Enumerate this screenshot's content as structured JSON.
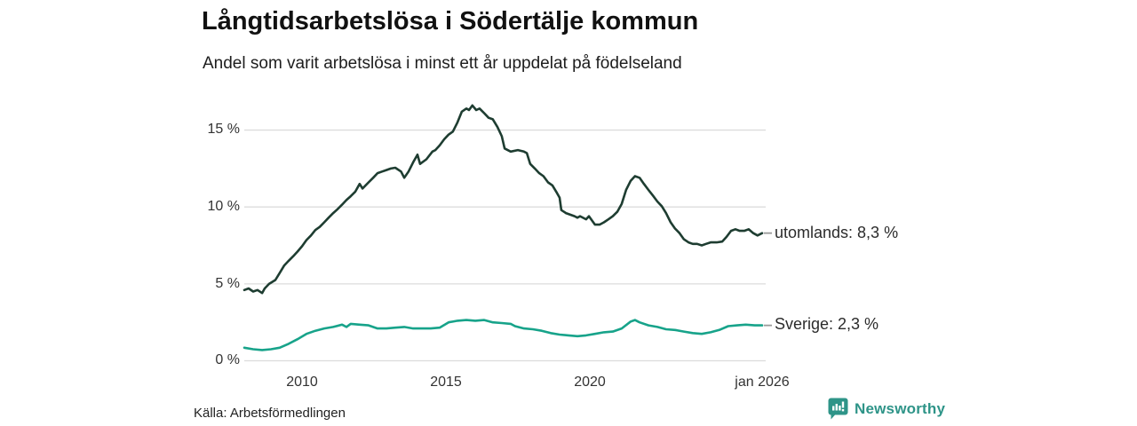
{
  "chart": {
    "title": "Långtidsarbetslösa i Södertälje kommun",
    "subtitle": "Andel som varit arbetslösa i minst ett år uppdelat på födelseland"
  },
  "chart_data": {
    "type": "line",
    "title": "Långtidsarbetslösa i Södertälje kommun",
    "subtitle": "Andel som varit arbetslösa i minst ett år uppdelat på födelseland",
    "xlabel": "",
    "ylabel": "%",
    "xlim": [
      2008.0,
      2026.0
    ],
    "ylim": [
      0,
      17.5
    ],
    "grid": true,
    "legend_position": "line-end-labels",
    "y_ticks": [
      {
        "value": 15,
        "label": "15 %"
      },
      {
        "value": 10,
        "label": "10 %"
      },
      {
        "value": 5,
        "label": "5 %"
      },
      {
        "value": 0,
        "label": "0 %"
      }
    ],
    "x_ticks": [
      {
        "value": 2010,
        "label": "2010"
      },
      {
        "value": 2015,
        "label": "2015"
      },
      {
        "value": 2020,
        "label": "2020"
      },
      {
        "value": 2026,
        "label": "jan 2026"
      }
    ],
    "series": [
      {
        "name": "utomlands",
        "end_label": "utomlands: 8,3 %",
        "end_value_pct": 8.3,
        "color": "#1e3d31",
        "points": [
          [
            2008.0,
            4.6
          ],
          [
            2008.15,
            4.7
          ],
          [
            2008.31,
            4.5
          ],
          [
            2008.46,
            4.6
          ],
          [
            2008.62,
            4.4
          ],
          [
            2008.71,
            4.7
          ],
          [
            2008.86,
            5.0
          ],
          [
            2009.08,
            5.25
          ],
          [
            2009.23,
            5.7
          ],
          [
            2009.39,
            6.2
          ],
          [
            2009.54,
            6.5
          ],
          [
            2009.7,
            6.8
          ],
          [
            2009.85,
            7.1
          ],
          [
            2010.01,
            7.45
          ],
          [
            2010.16,
            7.85
          ],
          [
            2010.32,
            8.15
          ],
          [
            2010.47,
            8.5
          ],
          [
            2010.62,
            8.7
          ],
          [
            2010.78,
            9.0
          ],
          [
            2010.93,
            9.3
          ],
          [
            2011.09,
            9.6
          ],
          [
            2011.24,
            9.85
          ],
          [
            2011.4,
            10.15
          ],
          [
            2011.55,
            10.45
          ],
          [
            2011.7,
            10.7
          ],
          [
            2011.86,
            11.0
          ],
          [
            2012.01,
            11.5
          ],
          [
            2012.11,
            11.2
          ],
          [
            2012.32,
            11.6
          ],
          [
            2012.48,
            11.9
          ],
          [
            2012.63,
            12.2
          ],
          [
            2012.79,
            12.3
          ],
          [
            2012.94,
            12.4
          ],
          [
            2013.09,
            12.5
          ],
          [
            2013.25,
            12.55
          ],
          [
            2013.45,
            12.3
          ],
          [
            2013.56,
            11.9
          ],
          [
            2013.71,
            12.3
          ],
          [
            2013.87,
            12.9
          ],
          [
            2014.02,
            13.4
          ],
          [
            2014.11,
            12.8
          ],
          [
            2014.33,
            13.1
          ],
          [
            2014.54,
            13.6
          ],
          [
            2014.64,
            13.7
          ],
          [
            2014.79,
            14.0
          ],
          [
            2014.95,
            14.4
          ],
          [
            2015.1,
            14.7
          ],
          [
            2015.25,
            14.9
          ],
          [
            2015.41,
            15.5
          ],
          [
            2015.56,
            16.2
          ],
          [
            2015.72,
            16.4
          ],
          [
            2015.81,
            16.3
          ],
          [
            2015.93,
            16.6
          ],
          [
            2016.06,
            16.3
          ],
          [
            2016.18,
            16.4
          ],
          [
            2016.34,
            16.1
          ],
          [
            2016.49,
            15.8
          ],
          [
            2016.64,
            15.7
          ],
          [
            2016.8,
            15.2
          ],
          [
            2016.95,
            14.6
          ],
          [
            2017.05,
            13.8
          ],
          [
            2017.26,
            13.6
          ],
          [
            2017.51,
            13.7
          ],
          [
            2017.72,
            13.6
          ],
          [
            2017.82,
            13.5
          ],
          [
            2017.94,
            12.8
          ],
          [
            2018.1,
            12.5
          ],
          [
            2018.25,
            12.2
          ],
          [
            2018.4,
            12.0
          ],
          [
            2018.56,
            11.6
          ],
          [
            2018.71,
            11.4
          ],
          [
            2018.87,
            10.9
          ],
          [
            2018.96,
            10.6
          ],
          [
            2019.02,
            9.8
          ],
          [
            2019.18,
            9.6
          ],
          [
            2019.33,
            9.5
          ],
          [
            2019.48,
            9.4
          ],
          [
            2019.58,
            9.3
          ],
          [
            2019.67,
            9.4
          ],
          [
            2019.88,
            9.2
          ],
          [
            2019.98,
            9.4
          ],
          [
            2020.19,
            8.85
          ],
          [
            2020.35,
            8.85
          ],
          [
            2020.5,
            9.0
          ],
          [
            2020.66,
            9.2
          ],
          [
            2020.81,
            9.4
          ],
          [
            2020.97,
            9.7
          ],
          [
            2021.12,
            10.2
          ],
          [
            2021.27,
            11.1
          ],
          [
            2021.43,
            11.7
          ],
          [
            2021.58,
            12.0
          ],
          [
            2021.74,
            11.9
          ],
          [
            2021.89,
            11.5
          ],
          [
            2022.05,
            11.1
          ],
          [
            2022.2,
            10.75
          ],
          [
            2022.36,
            10.35
          ],
          [
            2022.51,
            10.05
          ],
          [
            2022.66,
            9.6
          ],
          [
            2022.82,
            9.0
          ],
          [
            2022.97,
            8.6
          ],
          [
            2023.13,
            8.3
          ],
          [
            2023.28,
            7.9
          ],
          [
            2023.44,
            7.7
          ],
          [
            2023.59,
            7.6
          ],
          [
            2023.74,
            7.6
          ],
          [
            2023.9,
            7.5
          ],
          [
            2024.05,
            7.6
          ],
          [
            2024.21,
            7.7
          ],
          [
            2024.42,
            7.7
          ],
          [
            2024.61,
            7.75
          ],
          [
            2024.76,
            8.05
          ],
          [
            2024.92,
            8.45
          ],
          [
            2025.07,
            8.55
          ],
          [
            2025.22,
            8.45
          ],
          [
            2025.38,
            8.45
          ],
          [
            2025.53,
            8.55
          ],
          [
            2025.69,
            8.3
          ],
          [
            2025.84,
            8.15
          ],
          [
            2026.0,
            8.3
          ]
        ]
      },
      {
        "name": "Sverige",
        "end_label": "Sverige: 2,3 %",
        "end_value_pct": 2.3,
        "color": "#17a38a",
        "points": [
          [
            2008.0,
            0.85
          ],
          [
            2008.31,
            0.75
          ],
          [
            2008.62,
            0.7
          ],
          [
            2008.93,
            0.75
          ],
          [
            2009.23,
            0.85
          ],
          [
            2009.54,
            1.1
          ],
          [
            2009.85,
            1.4
          ],
          [
            2010.16,
            1.75
          ],
          [
            2010.47,
            1.95
          ],
          [
            2010.78,
            2.1
          ],
          [
            2011.09,
            2.2
          ],
          [
            2011.4,
            2.35
          ],
          [
            2011.55,
            2.2
          ],
          [
            2011.7,
            2.4
          ],
          [
            2012.01,
            2.35
          ],
          [
            2012.32,
            2.3
          ],
          [
            2012.63,
            2.1
          ],
          [
            2012.94,
            2.1
          ],
          [
            2013.25,
            2.15
          ],
          [
            2013.56,
            2.2
          ],
          [
            2013.87,
            2.1
          ],
          [
            2014.17,
            2.1
          ],
          [
            2014.48,
            2.1
          ],
          [
            2014.79,
            2.15
          ],
          [
            2015.1,
            2.5
          ],
          [
            2015.41,
            2.6
          ],
          [
            2015.72,
            2.65
          ],
          [
            2016.03,
            2.6
          ],
          [
            2016.34,
            2.65
          ],
          [
            2016.64,
            2.5
          ],
          [
            2016.95,
            2.45
          ],
          [
            2017.26,
            2.4
          ],
          [
            2017.41,
            2.25
          ],
          [
            2017.72,
            2.1
          ],
          [
            2018.03,
            2.05
          ],
          [
            2018.34,
            1.95
          ],
          [
            2018.65,
            1.8
          ],
          [
            2018.96,
            1.7
          ],
          [
            2019.27,
            1.65
          ],
          [
            2019.58,
            1.6
          ],
          [
            2019.88,
            1.65
          ],
          [
            2020.19,
            1.75
          ],
          [
            2020.5,
            1.85
          ],
          [
            2020.81,
            1.9
          ],
          [
            2021.12,
            2.1
          ],
          [
            2021.43,
            2.55
          ],
          [
            2021.58,
            2.65
          ],
          [
            2021.74,
            2.5
          ],
          [
            2022.05,
            2.3
          ],
          [
            2022.36,
            2.2
          ],
          [
            2022.66,
            2.05
          ],
          [
            2022.97,
            2.0
          ],
          [
            2023.28,
            1.9
          ],
          [
            2023.59,
            1.8
          ],
          [
            2023.9,
            1.75
          ],
          [
            2024.21,
            1.85
          ],
          [
            2024.51,
            2.0
          ],
          [
            2024.82,
            2.25
          ],
          [
            2025.13,
            2.3
          ],
          [
            2025.43,
            2.35
          ],
          [
            2025.74,
            2.3
          ],
          [
            2026.0,
            2.3
          ]
        ]
      }
    ]
  },
  "footer": {
    "source": "Källa: Arbetsförmedlingen",
    "brand": "Newsworthy"
  },
  "colors": {
    "series_utomlands": "#1e3d31",
    "series_sverige": "#17a38a",
    "gridline": "#dcdcdc",
    "axis_text": "#333333",
    "brand_teal": "#2e9488",
    "end_label_dash": "#9a9a9a",
    "background": "#ffffff"
  }
}
